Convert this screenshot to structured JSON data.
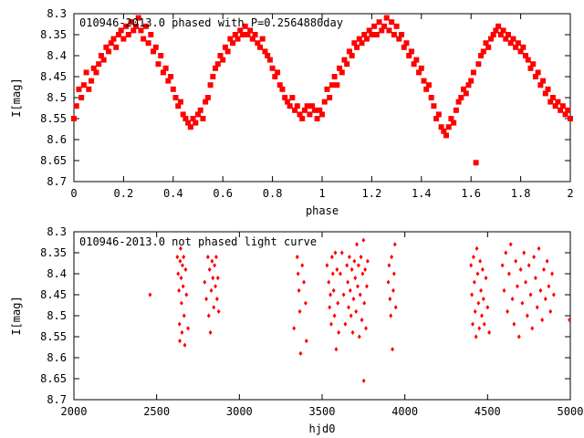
{
  "chart_data": [
    {
      "type": "scatter",
      "title": "010946-2013.0 phased with P=0.2564880day",
      "xlabel": "phase",
      "ylabel": "I[mag]",
      "xlim": [
        0,
        2
      ],
      "ylim": [
        8.7,
        8.3
      ],
      "y_inverted": true,
      "xticks": [
        "0",
        "0.2",
        "0.4",
        "0.6",
        "0.8",
        "1",
        "1.2",
        "1.4",
        "1.6",
        "1.8",
        "2"
      ],
      "yticks": [
        "8.3",
        "8.35",
        "8.4",
        "8.45",
        "8.5",
        "8.55",
        "8.6",
        "8.65",
        "8.7"
      ],
      "grid": false,
      "marker_color": "#ff0000",
      "marker": "filled-square",
      "points": [
        [
          0.0,
          8.55
        ],
        [
          0.01,
          8.52
        ],
        [
          0.02,
          8.48
        ],
        [
          0.03,
          8.5
        ],
        [
          0.04,
          8.47
        ],
        [
          0.05,
          8.44
        ],
        [
          0.06,
          8.48
        ],
        [
          0.07,
          8.46
        ],
        [
          0.08,
          8.43
        ],
        [
          0.09,
          8.44
        ],
        [
          0.1,
          8.42
        ],
        [
          0.11,
          8.4
        ],
        [
          0.12,
          8.41
        ],
        [
          0.13,
          8.38
        ],
        [
          0.14,
          8.39
        ],
        [
          0.15,
          8.37
        ],
        [
          0.16,
          8.36
        ],
        [
          0.17,
          8.38
        ],
        [
          0.18,
          8.35
        ],
        [
          0.19,
          8.34
        ],
        [
          0.2,
          8.36
        ],
        [
          0.21,
          8.33
        ],
        [
          0.22,
          8.35
        ],
        [
          0.23,
          8.32
        ],
        [
          0.24,
          8.34
        ],
        [
          0.25,
          8.33
        ],
        [
          0.26,
          8.31
        ],
        [
          0.27,
          8.34
        ],
        [
          0.28,
          8.36
        ],
        [
          0.29,
          8.33
        ],
        [
          0.3,
          8.37
        ],
        [
          0.31,
          8.35
        ],
        [
          0.32,
          8.39
        ],
        [
          0.33,
          8.38
        ],
        [
          0.34,
          8.42
        ],
        [
          0.35,
          8.4
        ],
        [
          0.36,
          8.44
        ],
        [
          0.37,
          8.43
        ],
        [
          0.38,
          8.46
        ],
        [
          0.39,
          8.45
        ],
        [
          0.4,
          8.48
        ],
        [
          0.41,
          8.5
        ],
        [
          0.42,
          8.52
        ],
        [
          0.43,
          8.51
        ],
        [
          0.44,
          8.54
        ],
        [
          0.45,
          8.55
        ],
        [
          0.46,
          8.56
        ],
        [
          0.47,
          8.57
        ],
        [
          0.48,
          8.55
        ],
        [
          0.49,
          8.56
        ],
        [
          0.5,
          8.54
        ],
        [
          0.51,
          8.53
        ],
        [
          0.52,
          8.55
        ],
        [
          0.53,
          8.51
        ],
        [
          0.54,
          8.5
        ],
        [
          0.55,
          8.47
        ],
        [
          0.56,
          8.45
        ],
        [
          0.57,
          8.43
        ],
        [
          0.58,
          8.42
        ],
        [
          0.59,
          8.4
        ],
        [
          0.6,
          8.41
        ],
        [
          0.61,
          8.38
        ],
        [
          0.62,
          8.39
        ],
        [
          0.63,
          8.36
        ],
        [
          0.64,
          8.37
        ],
        [
          0.65,
          8.35
        ],
        [
          0.66,
          8.36
        ],
        [
          0.67,
          8.34
        ],
        [
          0.68,
          8.35
        ],
        [
          0.69,
          8.33
        ],
        [
          0.7,
          8.35
        ],
        [
          0.71,
          8.34
        ],
        [
          0.72,
          8.36
        ],
        [
          0.73,
          8.35
        ],
        [
          0.74,
          8.37
        ],
        [
          0.75,
          8.38
        ],
        [
          0.76,
          8.36
        ],
        [
          0.77,
          8.39
        ],
        [
          0.78,
          8.4
        ],
        [
          0.79,
          8.41
        ],
        [
          0.8,
          8.43
        ],
        [
          0.81,
          8.45
        ],
        [
          0.82,
          8.44
        ],
        [
          0.83,
          8.47
        ],
        [
          0.84,
          8.48
        ],
        [
          0.85,
          8.5
        ],
        [
          0.86,
          8.51
        ],
        [
          0.87,
          8.52
        ],
        [
          0.88,
          8.5
        ],
        [
          0.89,
          8.53
        ],
        [
          0.9,
          8.52
        ],
        [
          0.91,
          8.54
        ],
        [
          0.92,
          8.55
        ],
        [
          0.93,
          8.53
        ],
        [
          0.94,
          8.52
        ],
        [
          0.95,
          8.54
        ],
        [
          0.96,
          8.52
        ],
        [
          0.97,
          8.53
        ],
        [
          0.98,
          8.55
        ],
        [
          0.99,
          8.53
        ],
        [
          1.0,
          8.54
        ],
        [
          1.01,
          8.51
        ],
        [
          1.02,
          8.48
        ],
        [
          1.03,
          8.5
        ],
        [
          1.04,
          8.47
        ],
        [
          1.05,
          8.45
        ],
        [
          1.06,
          8.47
        ],
        [
          1.07,
          8.43
        ],
        [
          1.08,
          8.44
        ],
        [
          1.09,
          8.41
        ],
        [
          1.1,
          8.42
        ],
        [
          1.11,
          8.39
        ],
        [
          1.12,
          8.4
        ],
        [
          1.13,
          8.37
        ],
        [
          1.14,
          8.38
        ],
        [
          1.15,
          8.36
        ],
        [
          1.16,
          8.37
        ],
        [
          1.17,
          8.35
        ],
        [
          1.18,
          8.36
        ],
        [
          1.19,
          8.34
        ],
        [
          1.2,
          8.35
        ],
        [
          1.21,
          8.33
        ],
        [
          1.22,
          8.35
        ],
        [
          1.23,
          8.32
        ],
        [
          1.24,
          8.34
        ],
        [
          1.25,
          8.33
        ],
        [
          1.26,
          8.31
        ],
        [
          1.27,
          8.34
        ],
        [
          1.28,
          8.32
        ],
        [
          1.29,
          8.35
        ],
        [
          1.3,
          8.33
        ],
        [
          1.31,
          8.36
        ],
        [
          1.32,
          8.35
        ],
        [
          1.33,
          8.38
        ],
        [
          1.34,
          8.37
        ],
        [
          1.35,
          8.4
        ],
        [
          1.36,
          8.39
        ],
        [
          1.37,
          8.42
        ],
        [
          1.38,
          8.41
        ],
        [
          1.39,
          8.44
        ],
        [
          1.4,
          8.43
        ],
        [
          1.41,
          8.46
        ],
        [
          1.42,
          8.48
        ],
        [
          1.43,
          8.47
        ],
        [
          1.44,
          8.5
        ],
        [
          1.45,
          8.52
        ],
        [
          1.46,
          8.55
        ],
        [
          1.47,
          8.54
        ],
        [
          1.48,
          8.57
        ],
        [
          1.49,
          8.58
        ],
        [
          1.5,
          8.59
        ],
        [
          1.51,
          8.57
        ],
        [
          1.52,
          8.55
        ],
        [
          1.53,
          8.56
        ],
        [
          1.54,
          8.53
        ],
        [
          1.55,
          8.51
        ],
        [
          1.56,
          8.5
        ],
        [
          1.57,
          8.48
        ],
        [
          1.58,
          8.49
        ],
        [
          1.59,
          8.47
        ],
        [
          1.6,
          8.46
        ],
        [
          1.61,
          8.44
        ],
        [
          1.62,
          8.655
        ],
        [
          1.63,
          8.42
        ],
        [
          1.64,
          8.4
        ],
        [
          1.65,
          8.39
        ],
        [
          1.66,
          8.37
        ],
        [
          1.67,
          8.38
        ],
        [
          1.68,
          8.36
        ],
        [
          1.69,
          8.35
        ],
        [
          1.7,
          8.34
        ],
        [
          1.71,
          8.33
        ],
        [
          1.72,
          8.35
        ],
        [
          1.73,
          8.34
        ],
        [
          1.74,
          8.36
        ],
        [
          1.75,
          8.35
        ],
        [
          1.76,
          8.37
        ],
        [
          1.77,
          8.36
        ],
        [
          1.78,
          8.38
        ],
        [
          1.79,
          8.37
        ],
        [
          1.8,
          8.39
        ],
        [
          1.81,
          8.38
        ],
        [
          1.82,
          8.4
        ],
        [
          1.83,
          8.41
        ],
        [
          1.84,
          8.43
        ],
        [
          1.85,
          8.42
        ],
        [
          1.86,
          8.45
        ],
        [
          1.87,
          8.44
        ],
        [
          1.88,
          8.47
        ],
        [
          1.89,
          8.46
        ],
        [
          1.9,
          8.49
        ],
        [
          1.91,
          8.48
        ],
        [
          1.92,
          8.51
        ],
        [
          1.93,
          8.5
        ],
        [
          1.94,
          8.52
        ],
        [
          1.95,
          8.51
        ],
        [
          1.96,
          8.53
        ],
        [
          1.97,
          8.52
        ],
        [
          1.98,
          8.54
        ],
        [
          1.99,
          8.53
        ],
        [
          2.0,
          8.55
        ]
      ]
    },
    {
      "type": "scatter",
      "title": "010946-2013.0 not phased light curve",
      "xlabel": "hjd0",
      "ylabel": "I[mag]",
      "xlim": [
        2000,
        5000
      ],
      "ylim": [
        8.7,
        8.3
      ],
      "y_inverted": true,
      "xticks": [
        "2000",
        "2500",
        "3000",
        "3500",
        "4000",
        "4500",
        "5000"
      ],
      "yticks": [
        "8.3",
        "8.35",
        "8.4",
        "8.45",
        "8.5",
        "8.55",
        "8.6",
        "8.65",
        "8.7"
      ],
      "grid": false,
      "marker_color": "#ff0000",
      "marker": "filled-diamond",
      "points": [
        [
          2460,
          8.45
        ],
        [
          2625,
          8.36
        ],
        [
          2630,
          8.4
        ],
        [
          2635,
          8.44
        ],
        [
          2638,
          8.52
        ],
        [
          2640,
          8.56
        ],
        [
          2642,
          8.37
        ],
        [
          2645,
          8.34
        ],
        [
          2648,
          8.41
        ],
        [
          2650,
          8.47
        ],
        [
          2653,
          8.54
        ],
        [
          2656,
          8.38
        ],
        [
          2660,
          8.43
        ],
        [
          2663,
          8.36
        ],
        [
          2666,
          8.5
        ],
        [
          2670,
          8.57
        ],
        [
          2675,
          8.39
        ],
        [
          2680,
          8.45
        ],
        [
          2690,
          8.53
        ],
        [
          2790,
          8.42
        ],
        [
          2800,
          8.46
        ],
        [
          2810,
          8.36
        ],
        [
          2815,
          8.5
        ],
        [
          2820,
          8.39
        ],
        [
          2825,
          8.54
        ],
        [
          2830,
          8.44
        ],
        [
          2835,
          8.37
        ],
        [
          2840,
          8.41
        ],
        [
          2845,
          8.48
        ],
        [
          2850,
          8.38
        ],
        [
          2855,
          8.43
        ],
        [
          2860,
          8.36
        ],
        [
          2865,
          8.46
        ],
        [
          2870,
          8.41
        ],
        [
          2875,
          8.49
        ],
        [
          3330,
          8.53
        ],
        [
          3350,
          8.36
        ],
        [
          3355,
          8.4
        ],
        [
          3360,
          8.44
        ],
        [
          3365,
          8.49
        ],
        [
          3370,
          8.59
        ],
        [
          3380,
          8.38
        ],
        [
          3390,
          8.42
        ],
        [
          3400,
          8.47
        ],
        [
          3405,
          8.56
        ],
        [
          3530,
          8.38
        ],
        [
          3540,
          8.42
        ],
        [
          3545,
          8.48
        ],
        [
          3550,
          8.45
        ],
        [
          3555,
          8.52
        ],
        [
          3560,
          8.36
        ],
        [
          3565,
          8.4
        ],
        [
          3570,
          8.44
        ],
        [
          3575,
          8.5
        ],
        [
          3580,
          8.35
        ],
        [
          3585,
          8.58
        ],
        [
          3590,
          8.39
        ],
        [
          3595,
          8.47
        ],
        [
          3600,
          8.54
        ],
        [
          3610,
          8.4
        ],
        [
          3620,
          8.35
        ],
        [
          3630,
          8.45
        ],
        [
          3640,
          8.52
        ],
        [
          3650,
          8.38
        ],
        [
          3655,
          8.42
        ],
        [
          3660,
          8.48
        ],
        [
          3665,
          8.36
        ],
        [
          3670,
          8.44
        ],
        [
          3675,
          8.5
        ],
        [
          3680,
          8.39
        ],
        [
          3685,
          8.54
        ],
        [
          3690,
          8.46
        ],
        [
          3695,
          8.37
        ],
        [
          3700,
          8.41
        ],
        [
          3705,
          8.49
        ],
        [
          3710,
          8.33
        ],
        [
          3715,
          8.43
        ],
        [
          3720,
          8.38
        ],
        [
          3725,
          8.55
        ],
        [
          3730,
          8.45
        ],
        [
          3735,
          8.36
        ],
        [
          3740,
          8.51
        ],
        [
          3745,
          8.4
        ],
        [
          3750,
          8.32
        ],
        [
          3752,
          8.655
        ],
        [
          3755,
          8.47
        ],
        [
          3760,
          8.39
        ],
        [
          3765,
          8.53
        ],
        [
          3770,
          8.43
        ],
        [
          3775,
          8.37
        ],
        [
          3900,
          8.42
        ],
        [
          3905,
          8.38
        ],
        [
          3910,
          8.46
        ],
        [
          3915,
          8.5
        ],
        [
          3920,
          8.36
        ],
        [
          3925,
          8.58
        ],
        [
          3930,
          8.44
        ],
        [
          3935,
          8.4
        ],
        [
          3940,
          8.33
        ],
        [
          3945,
          8.48
        ],
        [
          4400,
          8.38
        ],
        [
          4405,
          8.45
        ],
        [
          4410,
          8.52
        ],
        [
          4415,
          8.36
        ],
        [
          4420,
          8.42
        ],
        [
          4425,
          8.49
        ],
        [
          4430,
          8.55
        ],
        [
          4435,
          8.34
        ],
        [
          4440,
          8.4
        ],
        [
          4445,
          8.47
        ],
        [
          4450,
          8.53
        ],
        [
          4455,
          8.37
        ],
        [
          4460,
          8.44
        ],
        [
          4465,
          8.5
        ],
        [
          4470,
          8.39
        ],
        [
          4475,
          8.46
        ],
        [
          4480,
          8.52
        ],
        [
          4490,
          8.41
        ],
        [
          4500,
          8.48
        ],
        [
          4510,
          8.54
        ],
        [
          4590,
          8.38
        ],
        [
          4600,
          8.44
        ],
        [
          4610,
          8.35
        ],
        [
          4620,
          8.49
        ],
        [
          4630,
          8.4
        ],
        [
          4640,
          8.33
        ],
        [
          4650,
          8.46
        ],
        [
          4660,
          8.52
        ],
        [
          4670,
          8.37
        ],
        [
          4680,
          8.43
        ],
        [
          4690,
          8.55
        ],
        [
          4700,
          8.39
        ],
        [
          4710,
          8.47
        ],
        [
          4720,
          8.35
        ],
        [
          4730,
          8.42
        ],
        [
          4740,
          8.5
        ],
        [
          4750,
          8.38
        ],
        [
          4760,
          8.45
        ],
        [
          4770,
          8.53
        ],
        [
          4780,
          8.36
        ],
        [
          4790,
          8.41
        ],
        [
          4800,
          8.48
        ],
        [
          4810,
          8.34
        ],
        [
          4820,
          8.44
        ],
        [
          4830,
          8.51
        ],
        [
          4840,
          8.39
        ],
        [
          4850,
          8.46
        ],
        [
          4860,
          8.37
        ],
        [
          4870,
          8.43
        ],
        [
          4880,
          8.49
        ],
        [
          4890,
          8.4
        ],
        [
          4900,
          8.45
        ],
        [
          4995,
          8.51
        ]
      ]
    }
  ]
}
